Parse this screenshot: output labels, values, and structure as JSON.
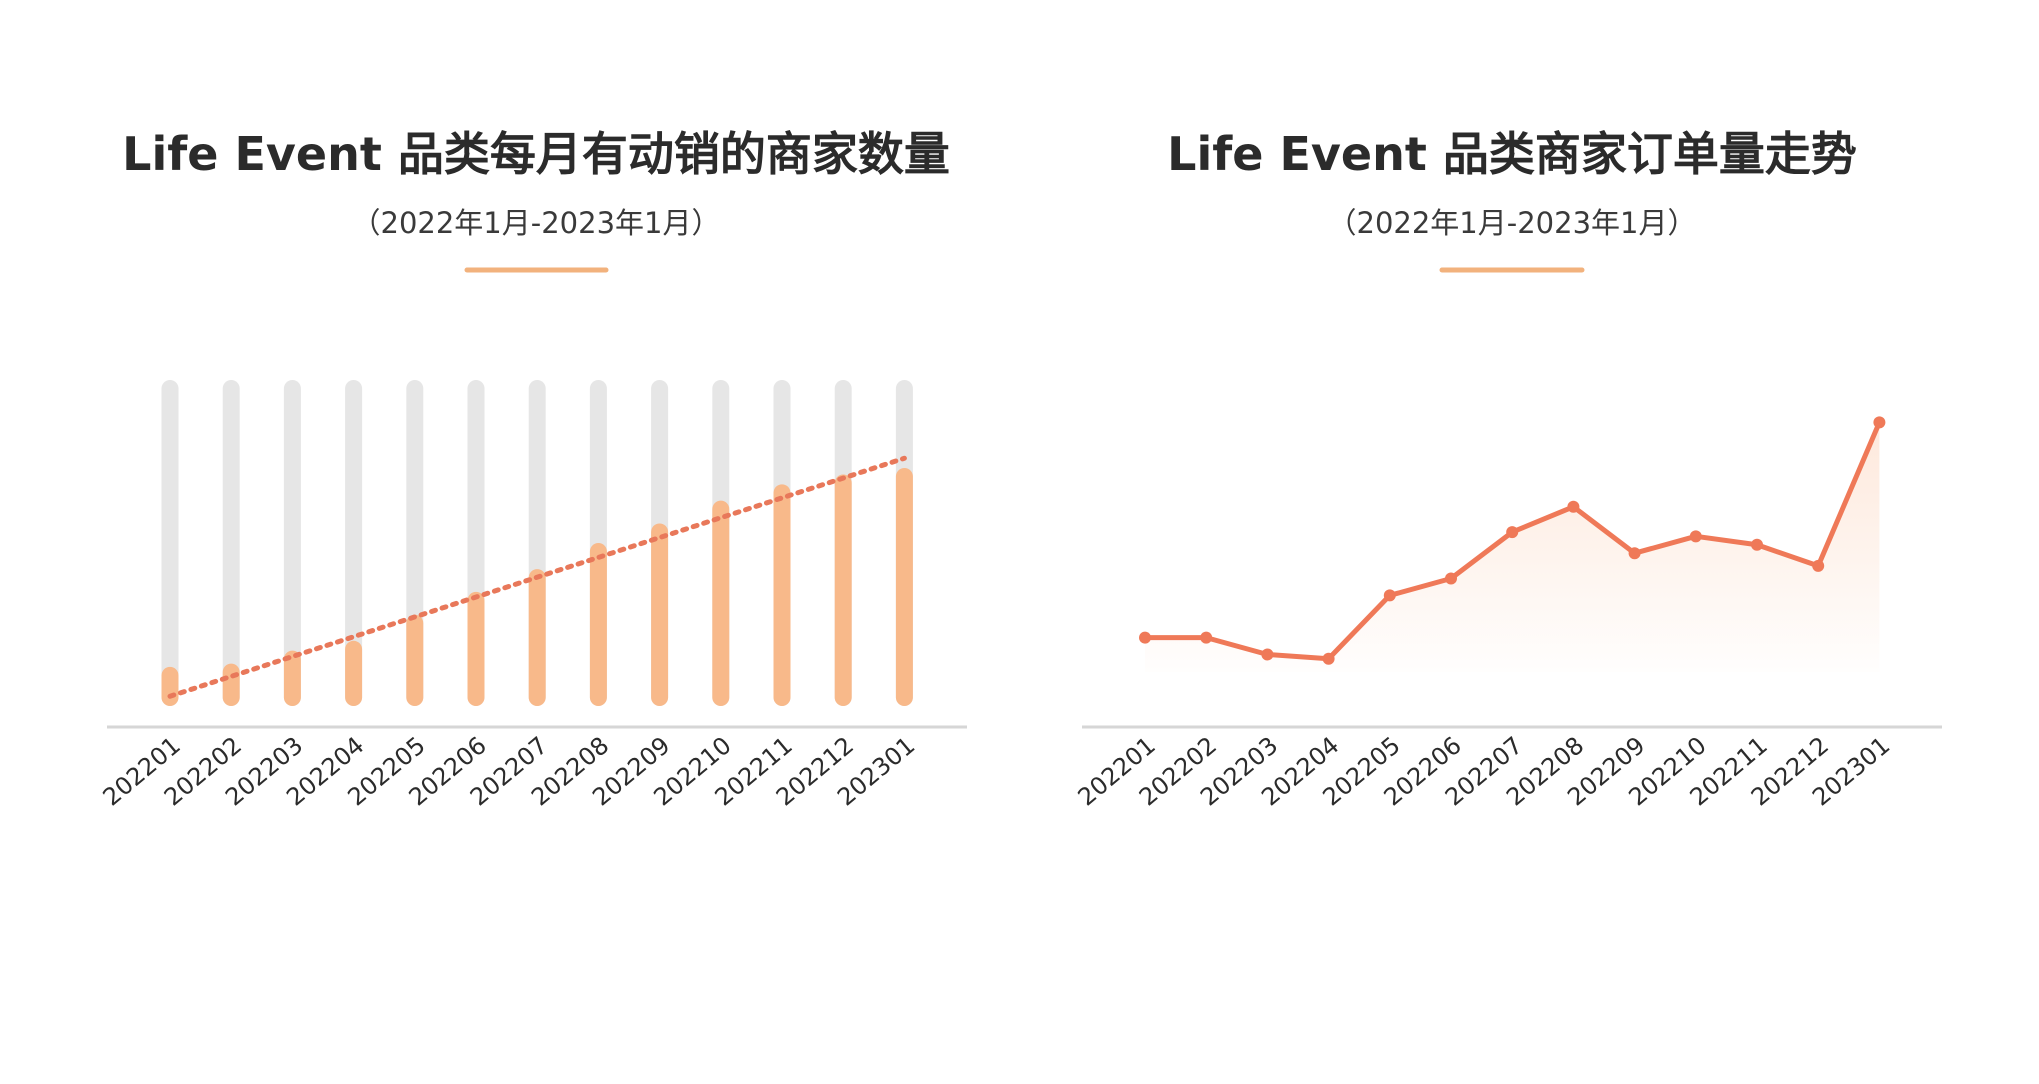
{
  "chart_data": [
    {
      "type": "bar",
      "title": "Life Event 品类每月有动销的商家数量",
      "subtitle": "（2022年1月-2023年1月）",
      "categories": [
        "202201",
        "202202",
        "202203",
        "202204",
        "202205",
        "202206",
        "202207",
        "202208",
        "202209",
        "202210",
        "202211",
        "202212",
        "202301"
      ],
      "values": [
        12,
        13,
        17,
        20,
        28,
        35,
        42,
        50,
        56,
        63,
        68,
        71,
        73
      ],
      "ylim": [
        0,
        100
      ],
      "trendline": {
        "style": "dotted",
        "from": 3,
        "to": 76
      },
      "grid": false,
      "colors": {
        "bar": "#f8b98a",
        "track": "#e6e6e6",
        "trend": "#e8785a",
        "accent": "#f2b27d",
        "axis": "#d6d6d6"
      }
    },
    {
      "type": "area",
      "title": "Life Event 品类商家订单量走势",
      "subtitle": "（2022年1月-2023年1月）",
      "categories": [
        "202201",
        "202202",
        "202203",
        "202204",
        "202205",
        "202206",
        "202207",
        "202208",
        "202209",
        "202210",
        "202211",
        "202212",
        "202301"
      ],
      "values": [
        20,
        20,
        16,
        15,
        30,
        34,
        45,
        51,
        40,
        44,
        42,
        37,
        71
      ],
      "ylim": [
        0,
        100
      ],
      "grid": false,
      "colors": {
        "line": "#ef7958",
        "fill": "#fde6d8",
        "accent": "#f2b27d",
        "axis": "#d6d6d6"
      }
    }
  ]
}
